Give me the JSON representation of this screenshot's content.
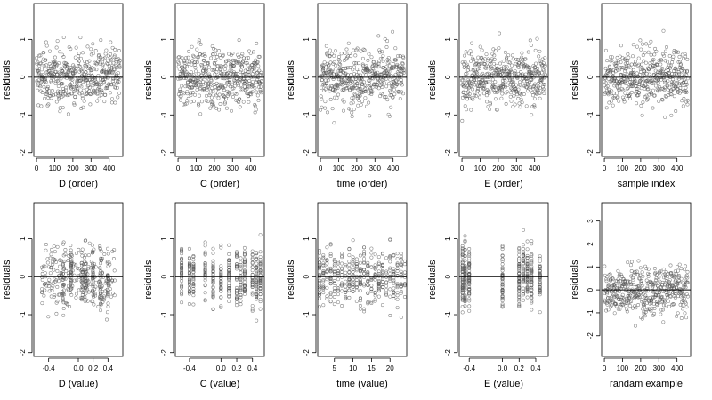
{
  "chart_data": [
    {
      "type": "scatter",
      "xlabel": "D (order)",
      "ylabel": "residuals",
      "xlim": [
        -15,
        475
      ],
      "ylim": [
        -2.1,
        1.95
      ],
      "xticks": [
        0,
        100,
        200,
        300,
        400
      ],
      "yticks": [
        -2,
        -1,
        0,
        1
      ],
      "xtick_labels": [
        "0",
        "100",
        "200",
        "300",
        "400"
      ],
      "ytick_labels": [
        "-2",
        "-1",
        "0",
        "1"
      ],
      "n_points": 460,
      "hline": 0
    },
    {
      "type": "scatter",
      "xlabel": "C (order)",
      "ylabel": "residuals",
      "xlim": [
        -15,
        475
      ],
      "ylim": [
        -2.1,
        1.95
      ],
      "xticks": [
        0,
        100,
        200,
        300,
        400
      ],
      "yticks": [
        -2,
        -1,
        0,
        1
      ],
      "xtick_labels": [
        "0",
        "100",
        "200",
        "300",
        "400"
      ],
      "ytick_labels": [
        "-2",
        "-1",
        "0",
        "1"
      ],
      "n_points": 460,
      "hline": 0
    },
    {
      "type": "scatter",
      "xlabel": "time (order)",
      "ylabel": "residuals",
      "xlim": [
        -15,
        475
      ],
      "ylim": [
        -2.1,
        1.95
      ],
      "xticks": [
        0,
        100,
        200,
        300,
        400
      ],
      "yticks": [
        -2,
        -1,
        0,
        1
      ],
      "xtick_labels": [
        "0",
        "100",
        "200",
        "300",
        "400"
      ],
      "ytick_labels": [
        "-2",
        "-1",
        "0",
        "1"
      ],
      "n_points": 460,
      "hline": 0
    },
    {
      "type": "scatter",
      "xlabel": "E (order)",
      "ylabel": "residuals",
      "xlim": [
        -15,
        475
      ],
      "ylim": [
        -2.1,
        1.95
      ],
      "xticks": [
        0,
        100,
        200,
        300,
        400
      ],
      "yticks": [
        -2,
        -1,
        0,
        1
      ],
      "xtick_labels": [
        "0",
        "100",
        "200",
        "300",
        "400"
      ],
      "ytick_labels": [
        "-2",
        "-1",
        "0",
        "1"
      ],
      "n_points": 460,
      "hline": 0
    },
    {
      "type": "scatter",
      "xlabel": "sample index",
      "ylabel": "residuals",
      "xlim": [
        -15,
        475
      ],
      "ylim": [
        -2.1,
        1.95
      ],
      "xticks": [
        0,
        100,
        200,
        300,
        400
      ],
      "yticks": [
        -2,
        -1,
        0,
        1
      ],
      "xtick_labels": [
        "0",
        "100",
        "200",
        "300",
        "400"
      ],
      "ytick_labels": [
        "-2",
        "-1",
        "0",
        "1"
      ],
      "n_points": 460,
      "hline": 0
    },
    {
      "type": "scatter",
      "xlabel": "D (value)",
      "ylabel": "residuals",
      "xlim": [
        -0.6,
        0.6
      ],
      "ylim": [
        -2.1,
        1.95
      ],
      "xticks": [
        -0.4,
        0.0,
        0.2,
        0.4
      ],
      "yticks": [
        -2,
        -1,
        0,
        1
      ],
      "xtick_labels": [
        "-0.4",
        "0.0",
        "0.2",
        "0.4"
      ],
      "ytick_labels": [
        "-2",
        "-1",
        "0",
        "1"
      ],
      "x_kind": "spread",
      "x_range": [
        -0.5,
        0.5
      ],
      "x_columns": [
        0.05,
        0.1,
        -0.1,
        0.4,
        0.3,
        0.2,
        -0.2
      ],
      "n_points": 420,
      "hline": 0
    },
    {
      "type": "scatter",
      "xlabel": "C (value)",
      "ylabel": "residuals",
      "xlim": [
        -0.58,
        0.55
      ],
      "ylim": [
        -2.1,
        1.95
      ],
      "xticks": [
        -0.4,
        0.0,
        0.2,
        0.4
      ],
      "yticks": [
        -2,
        -1,
        0,
        1
      ],
      "xtick_labels": [
        "-0.4",
        "0.0",
        "0.2",
        "0.4"
      ],
      "ytick_labels": [
        "-2",
        "-1",
        "0",
        "1"
      ],
      "x_kind": "columns",
      "x_columns": [
        -0.5,
        -0.4,
        -0.35,
        -0.2,
        -0.1,
        0.0,
        0.1,
        0.2,
        0.25,
        0.3,
        0.4,
        0.45,
        0.5
      ],
      "n_points": 420,
      "hline": 0
    },
    {
      "type": "scatter",
      "xlabel": "time (value)",
      "ylabel": "residuals",
      "xlim": [
        0.5,
        24.5
      ],
      "ylim": [
        -2.1,
        1.95
      ],
      "xticks": [
        5,
        10,
        15,
        20
      ],
      "yticks": [
        -2,
        -1,
        0,
        1
      ],
      "xtick_labels": [
        "5",
        "10",
        "15",
        "20"
      ],
      "ytick_labels": [
        "-2",
        "-1",
        "0",
        "1"
      ],
      "x_kind": "columns",
      "x_columns": [
        1,
        2,
        3,
        4,
        5,
        6,
        7,
        8,
        9,
        10,
        11,
        12,
        13,
        14,
        15,
        16,
        17,
        18,
        19,
        20,
        21,
        22,
        23,
        24
      ],
      "n_points": 420,
      "hline": 0
    },
    {
      "type": "scatter",
      "xlabel": "E (value)",
      "ylabel": "residuals",
      "xlim": [
        -0.52,
        0.55
      ],
      "ylim": [
        -2.1,
        1.95
      ],
      "xticks": [
        -0.4,
        0.0,
        0.2,
        0.4
      ],
      "yticks": [
        -2,
        -1,
        0,
        1
      ],
      "xtick_labels": [
        "-0.4",
        "0.0",
        "0.2",
        "0.4"
      ],
      "ytick_labels": [
        "-2",
        "-1",
        "0",
        "1"
      ],
      "x_kind": "columns",
      "x_columns": [
        -0.48,
        -0.45,
        -0.4,
        0.2,
        0.25,
        0.3,
        0.35,
        0.0,
        0.45
      ],
      "n_points": 420,
      "hline": 0
    },
    {
      "type": "scatter",
      "xlabel": "randam example",
      "ylabel": "residuals",
      "xlim": [
        -15,
        475
      ],
      "ylim": [
        -2.9,
        3.8
      ],
      "xticks": [
        0,
        100,
        200,
        300,
        400
      ],
      "yticks": [
        -2,
        -1,
        0,
        1,
        2,
        3
      ],
      "xtick_labels": [
        "0",
        "100",
        "200",
        "300",
        "400"
      ],
      "ytick_labels": [
        "-2",
        "-1",
        "0",
        "1",
        "2",
        "3"
      ],
      "n_points": 460,
      "hline": 0
    }
  ]
}
